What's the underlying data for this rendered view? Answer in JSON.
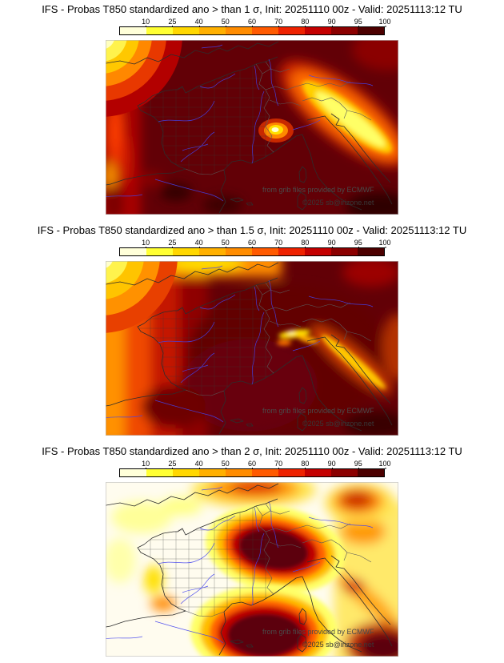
{
  "panels": [
    {
      "title": "IFS - Probas T850  standardized ano > than 1 σ, Init: 20251110 00z - Valid: 20251113:12 TU",
      "watermark_ecmwf": "from grib files provided by ECMWF",
      "watermark_copyright": "©2025 sb@irizone.net"
    },
    {
      "title": "IFS - Probas T850  standardized ano > than 1.5 σ, Init: 20251110 00z - Valid: 20251113:12 TU",
      "watermark_ecmwf": "from grib files provided by ECMWF",
      "watermark_copyright": "©2025 sb@irizone.net"
    },
    {
      "title": "IFS - Probas T850  standardized ano > than 2 σ, Init: 20251110 00z - Valid: 20251113:12 TU",
      "watermark_ecmwf": "from grib files provided by ECMWF",
      "watermark_copyright": "©2025 sb@irizone.net"
    }
  ],
  "colorbar": {
    "ticks": [
      "10",
      "25",
      "40",
      "50",
      "60",
      "70",
      "80",
      "90",
      "95",
      "100"
    ],
    "segment_colors": [
      "#ffffd9",
      "#ffff33",
      "#ffd700",
      "#ffb000",
      "#ff8c00",
      "#ff5a00",
      "#ee2200",
      "#c40000",
      "#8b0000",
      "#4c0000"
    ]
  },
  "map_palette": {
    "low": "#ffffff",
    "mid": "#ff8c00",
    "high": "#5c0007",
    "rivers": "#4343ee",
    "coastlines": "#2d2d2d"
  }
}
